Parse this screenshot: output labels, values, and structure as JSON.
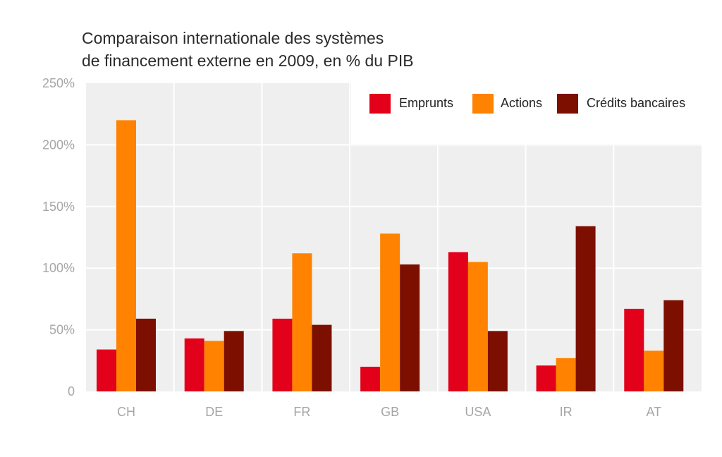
{
  "chart_data": {
    "type": "bar",
    "title_lines": [
      "Comparaison internationale des systèmes",
      "de financement externe en 2009, en % du PIB"
    ],
    "categories": [
      "CH",
      "DE",
      "FR",
      "GB",
      "USA",
      "IR",
      "AT"
    ],
    "series": [
      {
        "name": "Emprunts",
        "color": "#e2001a",
        "values": [
          34,
          43,
          59,
          20,
          113,
          21,
          67
        ]
      },
      {
        "name": "Actions",
        "color": "#ff8200",
        "values": [
          220,
          41,
          112,
          128,
          105,
          27,
          33
        ]
      },
      {
        "name": "Crédits bancaires",
        "color": "#7d0f00",
        "values": [
          59,
          49,
          54,
          103,
          49,
          134,
          74
        ]
      }
    ],
    "ylim": [
      0,
      250
    ],
    "y_ticks": [
      {
        "value": 0,
        "label": "0"
      },
      {
        "value": 50,
        "label": "50%"
      },
      {
        "value": 100,
        "label": "100%"
      },
      {
        "value": 150,
        "label": "150%"
      },
      {
        "value": 200,
        "label": "200%"
      },
      {
        "value": 250,
        "label": "250%"
      }
    ],
    "legend_position": "top-right",
    "grid": true,
    "background_color": "#efefef",
    "grid_color": "#ffffff"
  }
}
